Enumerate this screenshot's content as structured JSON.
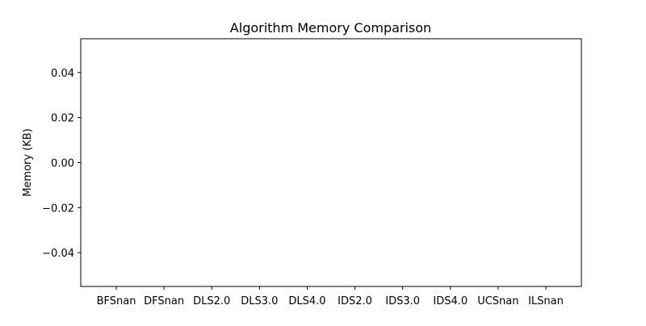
{
  "chart_data": {
    "type": "bar",
    "title": "Algorithm Memory Comparison",
    "xlabel": "",
    "ylabel": "Memory (KB)",
    "categories": [
      "BFSnan",
      "DFSnan",
      "DLS2.0",
      "DLS3.0",
      "DLS4.0",
      "IDS2.0",
      "IDS3.0",
      "IDS4.0",
      "UCSnan",
      "ILSnan"
    ],
    "values": [
      null,
      null,
      null,
      null,
      null,
      null,
      null,
      null,
      null,
      null
    ],
    "ylim": [
      -0.055,
      0.055
    ],
    "yticks": [
      "0.04",
      "0.02",
      "0.00",
      "−0.02",
      "−0.04"
    ],
    "ytick_values": [
      0.04,
      0.02,
      0.0,
      -0.02,
      -0.04
    ],
    "grid": false,
    "legend": "none"
  }
}
